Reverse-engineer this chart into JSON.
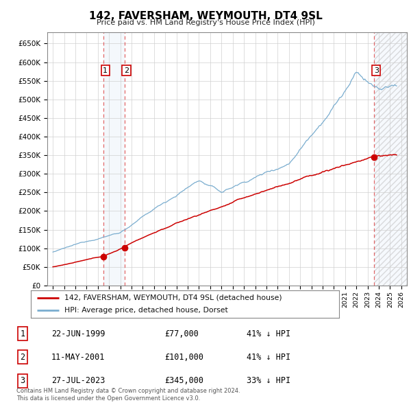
{
  "title": "142, FAVERSHAM, WEYMOUTH, DT4 9SL",
  "subtitle": "Price paid vs. HM Land Registry's House Price Index (HPI)",
  "legend_line1": "142, FAVERSHAM, WEYMOUTH, DT4 9SL (detached house)",
  "legend_line2": "HPI: Average price, detached house, Dorset",
  "sale_color": "#cc0000",
  "hpi_color": "#7aadcf",
  "transactions": [
    {
      "label": "1",
      "date": "22-JUN-1999",
      "price": 77000,
      "pct": "41%",
      "x": 1999.47
    },
    {
      "label": "2",
      "date": "11-MAY-2001",
      "price": 101000,
      "pct": "41%",
      "x": 2001.36
    },
    {
      "label": "3",
      "date": "27-JUL-2023",
      "price": 345000,
      "pct": "33%",
      "x": 2023.57
    }
  ],
  "ylim": [
    0,
    680000
  ],
  "xlim": [
    1994.5,
    2026.5
  ],
  "ytick_vals": [
    0,
    50000,
    100000,
    150000,
    200000,
    250000,
    300000,
    350000,
    400000,
    450000,
    500000,
    550000,
    600000,
    650000
  ],
  "footer_line1": "Contains HM Land Registry data © Crown copyright and database right 2024.",
  "footer_line2": "This data is licensed under the Open Government Licence v3.0."
}
